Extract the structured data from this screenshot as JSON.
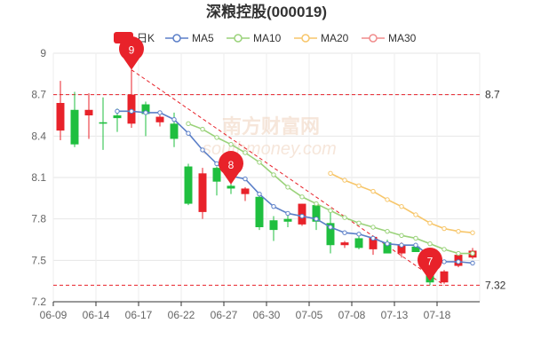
{
  "chart_data": {
    "type": "candlestick",
    "title": "深粮控股(000019)",
    "legend": [
      {
        "label": "日K",
        "kind": "candle",
        "color": "#e8222a"
      },
      {
        "label": "MA5",
        "kind": "line",
        "color": "#5b7fc8"
      },
      {
        "label": "MA10",
        "kind": "line",
        "color": "#9ad27a"
      },
      {
        "label": "MA20",
        "kind": "line",
        "color": "#f7c66a"
      },
      {
        "label": "MA30",
        "kind": "line",
        "color": "#f08c8c"
      }
    ],
    "legend_placement": "top",
    "ylim": [
      7.2,
      9.0
    ],
    "y_ticks": [
      "9",
      "8.7",
      "8.4",
      "8.1",
      "7.8",
      "7.5",
      "7.2"
    ],
    "x_tick_labels": [
      "06-09",
      "06-14",
      "06-17",
      "06-22",
      "06-27",
      "06-30",
      "07-05",
      "07-08",
      "07-13",
      "07-18"
    ],
    "x_tick_index": [
      0,
      3,
      6,
      9,
      12,
      15,
      18,
      21,
      24,
      27
    ],
    "grid": true,
    "up_color": "#e8222a",
    "down_color": "#1fbf3f",
    "candles": [
      {
        "o": 8.44,
        "h": 8.8,
        "l": 8.37,
        "c": 8.64
      },
      {
        "o": 8.59,
        "h": 8.72,
        "l": 8.32,
        "c": 8.34
      },
      {
        "o": 8.55,
        "h": 8.71,
        "l": 8.38,
        "c": 8.59
      },
      {
        "o": 8.5,
        "h": 8.68,
        "l": 8.3,
        "c": 8.49
      },
      {
        "o": 8.55,
        "h": 8.6,
        "l": 8.43,
        "c": 8.53
      },
      {
        "o": 8.49,
        "h": 8.88,
        "l": 8.46,
        "c": 8.7
      },
      {
        "o": 8.63,
        "h": 8.65,
        "l": 8.4,
        "c": 8.56
      },
      {
        "o": 8.5,
        "h": 8.58,
        "l": 8.47,
        "c": 8.54
      },
      {
        "o": 8.49,
        "h": 8.57,
        "l": 8.32,
        "c": 8.38
      },
      {
        "o": 8.18,
        "h": 8.2,
        "l": 7.9,
        "c": 7.91
      },
      {
        "o": 7.85,
        "h": 8.17,
        "l": 7.8,
        "c": 8.13
      },
      {
        "o": 8.17,
        "h": 8.18,
        "l": 7.97,
        "c": 8.07
      },
      {
        "o": 8.04,
        "h": 8.06,
        "l": 7.98,
        "c": 8.02
      },
      {
        "o": 7.98,
        "h": 8.03,
        "l": 7.93,
        "c": 8.02
      },
      {
        "o": 7.96,
        "h": 7.97,
        "l": 7.72,
        "c": 7.74
      },
      {
        "o": 7.79,
        "h": 7.82,
        "l": 7.64,
        "c": 7.72
      },
      {
        "o": 7.8,
        "h": 7.84,
        "l": 7.74,
        "c": 7.78
      },
      {
        "o": 7.76,
        "h": 7.91,
        "l": 7.75,
        "c": 7.91
      },
      {
        "o": 7.9,
        "h": 7.92,
        "l": 7.72,
        "c": 7.78
      },
      {
        "o": 7.77,
        "h": 7.85,
        "l": 7.55,
        "c": 7.61
      },
      {
        "o": 7.61,
        "h": 7.64,
        "l": 7.59,
        "c": 7.63
      },
      {
        "o": 7.66,
        "h": 7.68,
        "l": 7.58,
        "c": 7.59
      },
      {
        "o": 7.58,
        "h": 7.68,
        "l": 7.54,
        "c": 7.67
      },
      {
        "o": 7.63,
        "h": 7.65,
        "l": 7.55,
        "c": 7.55
      },
      {
        "o": 7.55,
        "h": 7.63,
        "l": 7.52,
        "c": 7.61
      },
      {
        "o": 7.6,
        "h": 7.61,
        "l": 7.56,
        "c": 7.56
      },
      {
        "o": 7.4,
        "h": 7.48,
        "l": 7.32,
        "c": 7.34
      },
      {
        "o": 7.34,
        "h": 7.43,
        "l": 7.33,
        "c": 7.42
      },
      {
        "o": 7.46,
        "h": 7.55,
        "l": 7.45,
        "c": 7.54
      },
      {
        "o": 7.52,
        "h": 7.59,
        "l": 7.51,
        "c": 7.57
      }
    ],
    "ma5": [
      null,
      null,
      null,
      null,
      8.58,
      8.58,
      8.57,
      8.57,
      8.52,
      8.42,
      8.3,
      8.2,
      8.11,
      8.09,
      7.98,
      7.89,
      7.84,
      7.82,
      7.8,
      7.74,
      7.7,
      7.69,
      7.66,
      7.62,
      7.61,
      7.61,
      7.53,
      7.49,
      7.49,
      7.48
    ],
    "ma10": [
      null,
      null,
      null,
      null,
      null,
      null,
      null,
      null,
      null,
      8.49,
      8.45,
      8.39,
      8.34,
      8.28,
      8.21,
      8.12,
      8.03,
      7.96,
      7.91,
      7.86,
      7.81,
      7.77,
      7.74,
      7.71,
      7.68,
      7.66,
      7.62,
      7.58,
      7.55,
      7.55
    ],
    "ma20": [
      null,
      null,
      null,
      null,
      null,
      null,
      null,
      null,
      null,
      null,
      null,
      null,
      null,
      null,
      null,
      null,
      null,
      null,
      null,
      8.13,
      8.08,
      8.04,
      8.0,
      7.94,
      7.89,
      7.83,
      7.77,
      7.73,
      7.71,
      7.7
    ],
    "ma30": [],
    "ref_lines": [
      {
        "value": 8.7,
        "label": "8.7",
        "color": "#e8222a"
      },
      {
        "value": 7.32,
        "label": "7.32",
        "color": "#e8222a"
      }
    ],
    "markers": [
      {
        "index": 5,
        "value": 8.88,
        "label": "9"
      },
      {
        "index": 12,
        "value": 8.05,
        "label": "8"
      },
      {
        "index": 26,
        "value": 7.35,
        "label": "7"
      }
    ],
    "trend_line": {
      "from_index": 5,
      "from_value": 8.88,
      "to_index": 27,
      "to_value": 7.32,
      "color": "#e8222a"
    }
  },
  "watermark": {
    "title": "南方财富网",
    "url": "southmoney.com"
  }
}
